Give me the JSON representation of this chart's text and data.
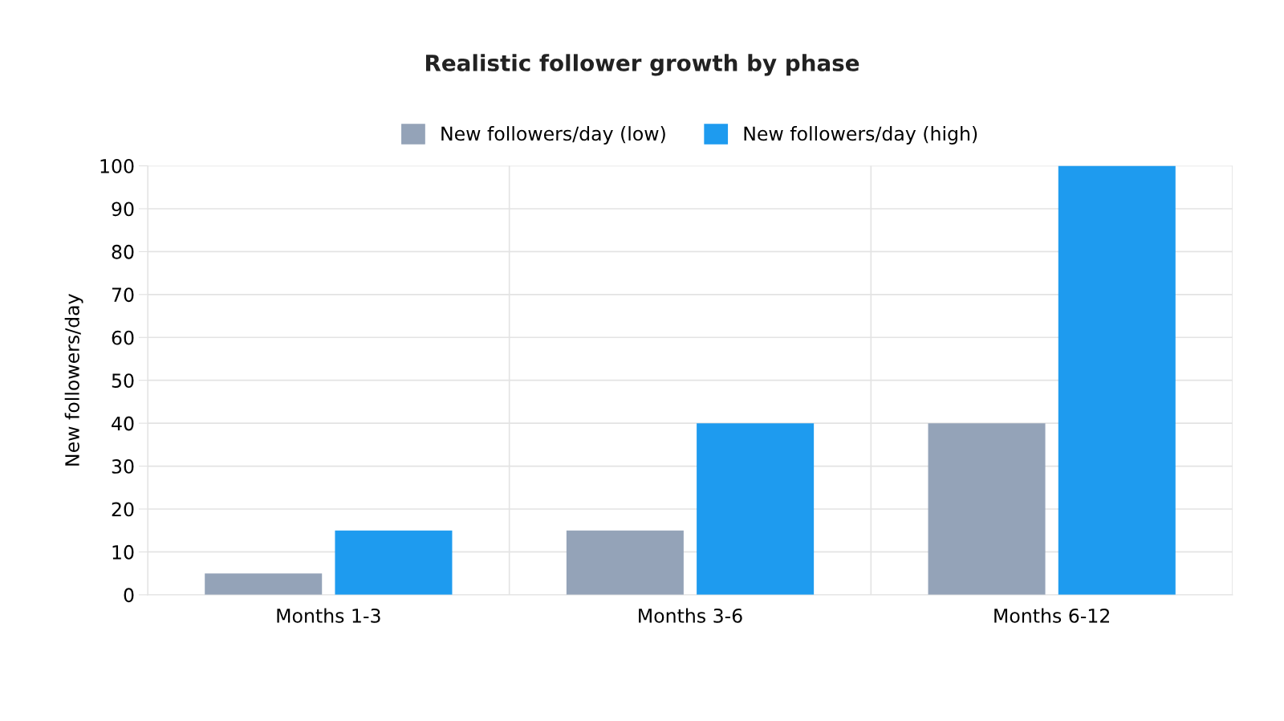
{
  "chart_data": {
    "type": "bar",
    "title": "Realistic follower growth by phase",
    "ylabel": "New followers/day",
    "categories": [
      "Months 1-3",
      "Months 3-6",
      "Months 6-12"
    ],
    "series": [
      {
        "name": "New followers/day (low)",
        "color": "#94a3b8",
        "values": [
          5,
          15,
          40
        ]
      },
      {
        "name": "New followers/day (high)",
        "color": "#1e9bef",
        "values": [
          15,
          40,
          100
        ]
      }
    ],
    "ylim": [
      0,
      100
    ],
    "yticks": [
      0,
      10,
      20,
      30,
      40,
      50,
      60,
      70,
      80,
      90,
      100
    ],
    "grid": true,
    "legend": "top"
  }
}
